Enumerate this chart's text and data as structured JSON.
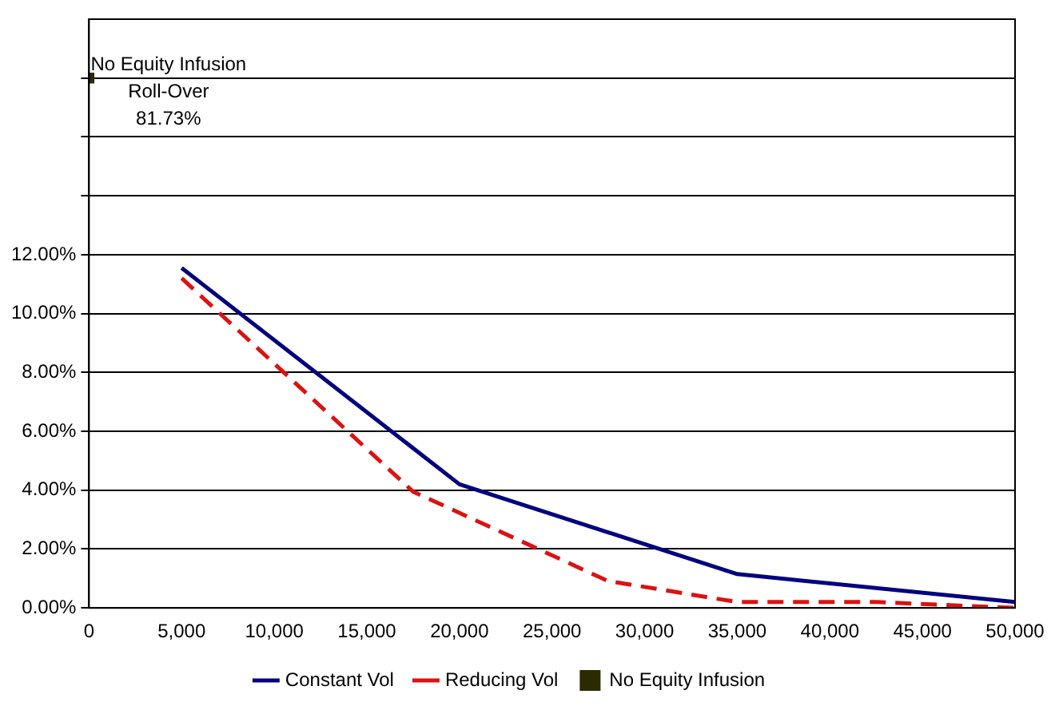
{
  "chart_data": {
    "type": "line",
    "xlim": [
      0,
      50000
    ],
    "xticks": [
      0,
      {
        "value": 5000,
        "label": "5,000"
      },
      {
        "value": 10000,
        "label": "10,000"
      },
      {
        "value": 15000,
        "label": "15,000"
      },
      {
        "value": 20000,
        "label": "20,000"
      },
      {
        "value": 25000,
        "label": "25,000"
      },
      {
        "value": 30000,
        "label": "30,000"
      },
      {
        "value": 35000,
        "label": "35,000"
      },
      {
        "value": 40000,
        "label": "40,000"
      },
      {
        "value": 45000,
        "label": "45,000"
      },
      {
        "value": 50000,
        "label": "50,000"
      }
    ],
    "ylim": [
      0,
      20
    ],
    "yticks": [
      {
        "value": 0,
        "label": "0.00%"
      },
      {
        "value": 2,
        "label": "2.00%"
      },
      {
        "value": 4,
        "label": "4.00%"
      },
      {
        "value": 6,
        "label": "6.00%"
      },
      {
        "value": 8,
        "label": "8.00%"
      },
      {
        "value": 10,
        "label": "10.00%"
      },
      {
        "value": 12,
        "label": "12.00%"
      },
      {
        "value": 14,
        "label": null
      },
      {
        "value": 16,
        "label": null
      },
      {
        "value": 18,
        "label": null
      }
    ],
    "grid": "y",
    "legend": "bottom",
    "series": [
      {
        "name": "Constant Vol",
        "color": "#000080",
        "type": "line",
        "line_style": "solid",
        "marker": "none",
        "x": [
          5000,
          20000,
          35000,
          50000
        ],
        "values": [
          11.55,
          4.2,
          1.15,
          0.2
        ]
      },
      {
        "name": "Reducing Vol",
        "color": "#dd1111",
        "type": "line",
        "line_style": "dashed",
        "marker": "none",
        "x": [
          5000,
          17500,
          28000,
          35000,
          42500,
          50000
        ],
        "values": [
          11.2,
          3.95,
          0.92,
          0.2,
          0.2,
          0
        ]
      },
      {
        "name": "No Equity Infusion",
        "color": "#2b2b00",
        "type": "scatter",
        "marker": "square",
        "x": [
          0
        ],
        "values": [
          18
        ],
        "value_labels": [
          "No Equity Infusion\nRoll-Over\n81.73%"
        ]
      }
    ]
  }
}
